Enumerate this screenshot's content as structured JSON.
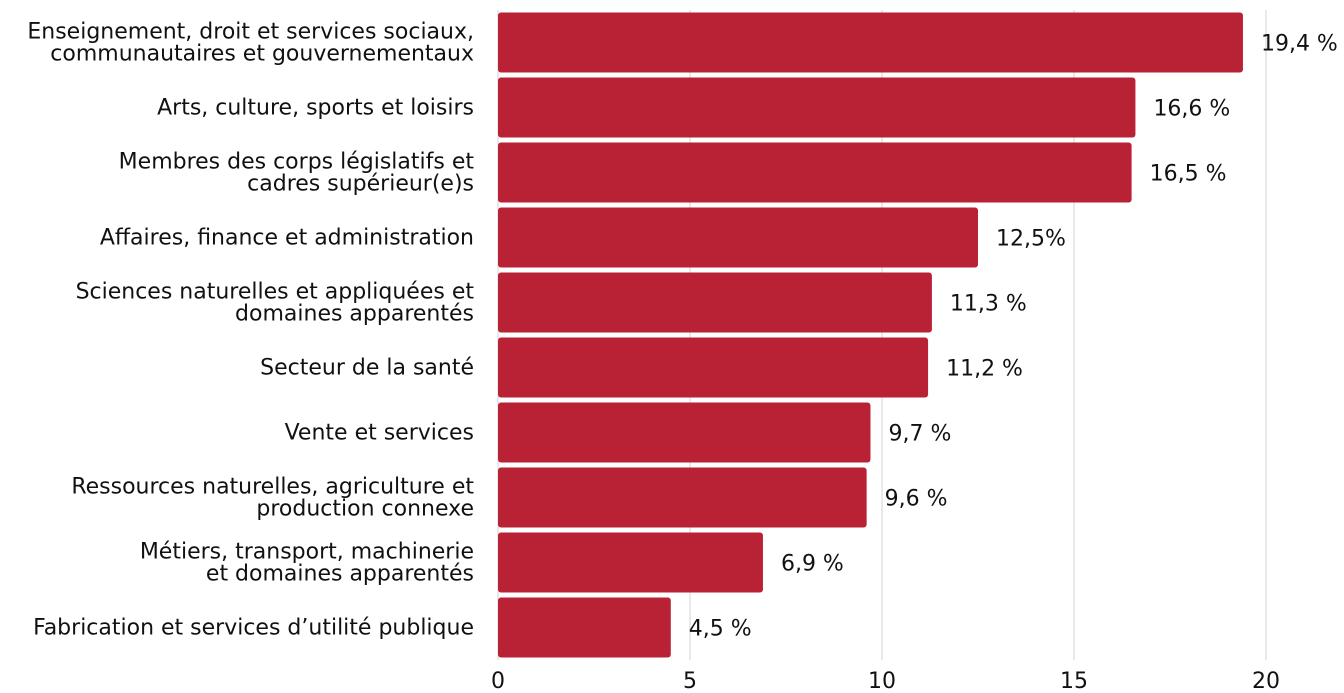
{
  "chart_data": {
    "type": "bar",
    "orientation": "horizontal",
    "categories": [
      [
        "Enseignement, droit et services sociaux,",
        "communautaires et gouvernementaux"
      ],
      [
        "Arts, culture, sports et loisirs"
      ],
      [
        "Membres des corps législatifs et",
        "cadres supérieur(e)s"
      ],
      [
        "Affaires, finance et administration"
      ],
      [
        "Sciences naturelles et appliquées et",
        "domaines apparentés"
      ],
      [
        "Secteur de la santé"
      ],
      [
        "Vente et services"
      ],
      [
        "Ressources naturelles, agriculture et",
        "production connexe"
      ],
      [
        "Métiers, transport, machinerie",
        "et domaines apparentés"
      ],
      [
        "Fabrication et services d’utilité publique"
      ]
    ],
    "values": [
      19.4,
      16.6,
      16.5,
      12.5,
      11.3,
      11.2,
      9.7,
      9.6,
      6.9,
      4.5
    ],
    "data_labels": [
      "19,4 %",
      "16,6 %",
      "16,5 %",
      "12,5%",
      "11,3 %",
      "11,2 %",
      "9,7 %",
      "9,6 %",
      "6,9 %",
      "4,5 %"
    ],
    "xticks": [
      "0",
      "5",
      "10",
      "15",
      "20"
    ],
    "xlim": [
      0,
      20
    ],
    "grid": "vertical",
    "bar_color": "#B92234",
    "grid_color": "#d3d3d3",
    "title": "",
    "xlabel": "",
    "ylabel": ""
  }
}
